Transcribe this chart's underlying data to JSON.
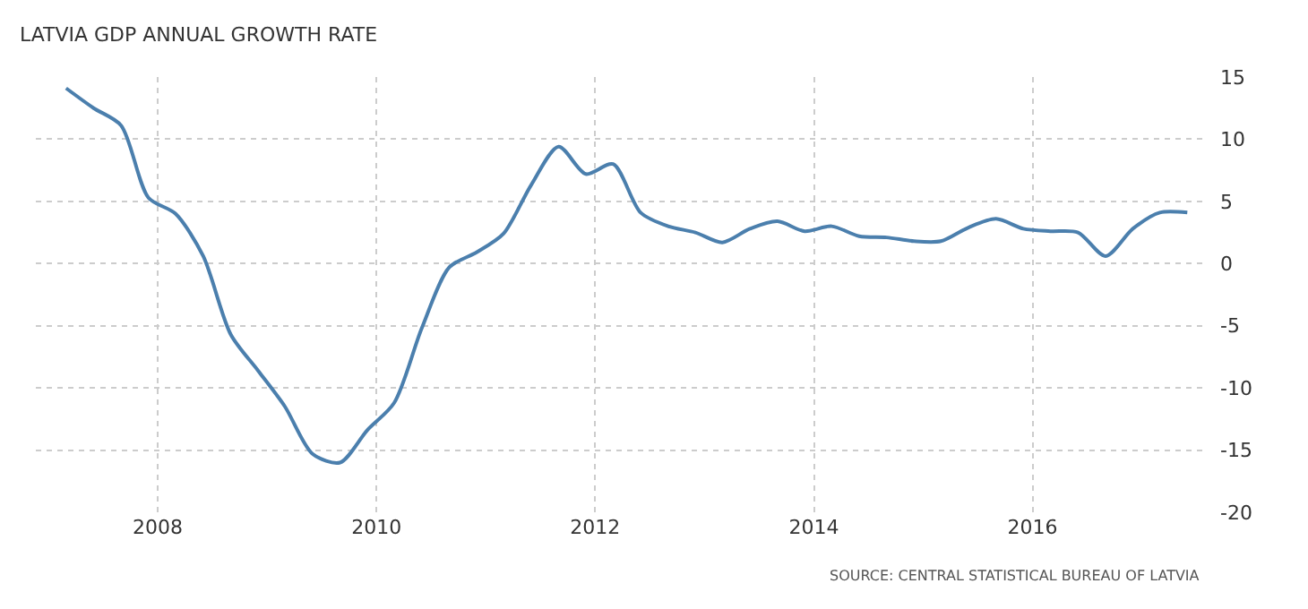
{
  "chart_data": {
    "type": "line",
    "title": "LATVIA GDP ANNUAL GROWTH RATE",
    "annotations": [
      "SOURCE: CENTRAL STATISTICAL BUREAU OF LATVIA"
    ],
    "x": [
      "2007-03",
      "2007-06",
      "2007-09",
      "2007-12",
      "2008-03",
      "2008-06",
      "2008-09",
      "2008-12",
      "2009-03",
      "2009-06",
      "2009-09",
      "2009-12",
      "2010-03",
      "2010-06",
      "2010-09",
      "2010-12",
      "2011-03",
      "2011-06",
      "2011-09",
      "2011-12",
      "2012-03",
      "2012-06",
      "2012-09",
      "2012-12",
      "2013-03",
      "2013-06",
      "2013-09",
      "2013-12",
      "2014-03",
      "2014-06",
      "2014-09",
      "2014-12",
      "2015-03",
      "2015-06",
      "2015-09",
      "2015-12",
      "2016-03",
      "2016-06",
      "2016-09",
      "2016-12",
      "2017-03",
      "2017-06"
    ],
    "series": [
      {
        "color": "#4b7fad",
        "values": [
          14.1,
          12.5,
          11.1,
          5.3,
          4.0,
          0.6,
          -5.7,
          -8.6,
          -11.5,
          -15.3,
          -16.0,
          -13.4,
          -11.2,
          -5.2,
          -0.3,
          0.9,
          2.4,
          6.3,
          9.4,
          7.2,
          8.0,
          4.1,
          3.0,
          2.5,
          1.7,
          2.8,
          3.4,
          2.6,
          3.0,
          2.2,
          2.1,
          1.8,
          1.8,
          2.9,
          3.6,
          2.8,
          2.6,
          2.5,
          0.6,
          2.8,
          4.1,
          4.1
        ]
      }
    ],
    "xlim": [
      "2006-11-20",
      "2017-07-27"
    ],
    "xticks": [
      "2008",
      "2010",
      "2012",
      "2014",
      "2016"
    ],
    "ylim": [
      -20,
      15
    ],
    "yticks": [
      -20,
      -15,
      -10,
      -5,
      0,
      5,
      10,
      15
    ],
    "grid": true,
    "marker": "none",
    "line_style": "solid"
  }
}
